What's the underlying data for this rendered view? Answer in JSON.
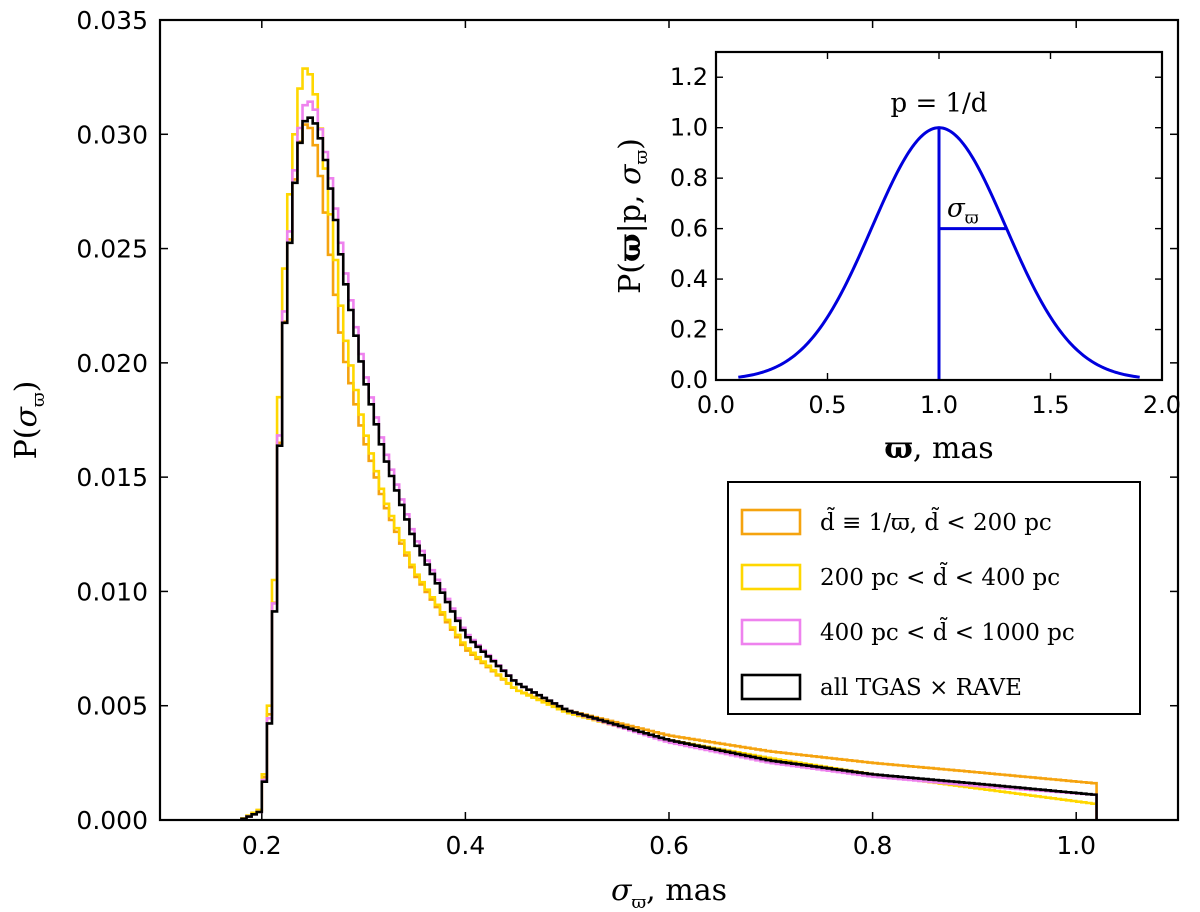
{
  "chart_data": [
    {
      "type": "line",
      "drawstyle": "steps",
      "title": "",
      "xlabel": "σϖ,  mas",
      "ylabel": "P(σϖ)",
      "xlim": [
        0.1,
        1.1
      ],
      "ylim": [
        0.0,
        0.035
      ],
      "x_ticks": [
        "0.2",
        "0.4",
        "0.6",
        "0.8",
        "1.0"
      ],
      "x_tick_values": [
        0.2,
        0.4,
        0.6,
        0.8,
        1.0
      ],
      "y_ticks": [
        "0.000",
        "0.005",
        "0.010",
        "0.015",
        "0.020",
        "0.025",
        "0.030",
        "0.035"
      ],
      "y_tick_values": [
        0.0,
        0.005,
        0.01,
        0.015,
        0.02,
        0.025,
        0.03,
        0.035
      ],
      "legend_placement": "center-right",
      "series": [
        {
          "name": "d̃ ≡ 1/ϖ,  d̃ < 200 pc",
          "color": "#f5a30f",
          "x": [
            0.18,
            0.2,
            0.21,
            0.22,
            0.23,
            0.24,
            0.25,
            0.26,
            0.27,
            0.28,
            0.3,
            0.32,
            0.35,
            0.4,
            0.45,
            0.5,
            0.6,
            0.7,
            0.8,
            0.9,
            1.02
          ],
          "y": [
            0.0,
            0.0005,
            0.006,
            0.02,
            0.0272,
            0.0305,
            0.0302,
            0.0275,
            0.0238,
            0.0205,
            0.0168,
            0.0139,
            0.0108,
            0.0075,
            0.0057,
            0.0048,
            0.0037,
            0.003,
            0.0025,
            0.0021,
            0.0016
          ]
        },
        {
          "name": "200 pc < d̃ < 400 pc",
          "color": "#ffd700",
          "x": [
            0.18,
            0.2,
            0.21,
            0.22,
            0.23,
            0.24,
            0.25,
            0.26,
            0.27,
            0.28,
            0.3,
            0.32,
            0.35,
            0.4,
            0.45,
            0.5,
            0.6,
            0.7,
            0.8,
            0.9,
            1.02
          ],
          "y": [
            0.0,
            0.0005,
            0.0065,
            0.0225,
            0.029,
            0.033,
            0.0325,
            0.0295,
            0.0255,
            0.0215,
            0.0172,
            0.0141,
            0.0109,
            0.0076,
            0.0057,
            0.0047,
            0.0035,
            0.0027,
            0.002,
            0.0014,
            0.0007
          ]
        },
        {
          "name": "400 pc < d̃ < 1000 pc",
          "color": "#ee82ee",
          "x": [
            0.18,
            0.2,
            0.21,
            0.22,
            0.23,
            0.24,
            0.25,
            0.26,
            0.27,
            0.28,
            0.3,
            0.32,
            0.35,
            0.4,
            0.45,
            0.5,
            0.6,
            0.7,
            0.8,
            0.9,
            1.02
          ],
          "y": [
            0.0,
            0.0004,
            0.0058,
            0.0205,
            0.0275,
            0.0312,
            0.0315,
            0.0298,
            0.0275,
            0.0245,
            0.0198,
            0.0163,
            0.0124,
            0.0082,
            0.006,
            0.0048,
            0.0034,
            0.0025,
            0.0019,
            0.0015,
            0.0011
          ]
        },
        {
          "name": "all TGAS × RAVE",
          "color": "#000000",
          "x": [
            0.18,
            0.2,
            0.21,
            0.22,
            0.23,
            0.24,
            0.25,
            0.26,
            0.27,
            0.28,
            0.3,
            0.32,
            0.35,
            0.4,
            0.45,
            0.5,
            0.6,
            0.7,
            0.8,
            0.9,
            1.02
          ],
          "y": [
            0.0,
            0.0004,
            0.0055,
            0.02,
            0.027,
            0.0305,
            0.0308,
            0.0295,
            0.027,
            0.024,
            0.0195,
            0.016,
            0.0122,
            0.0081,
            0.006,
            0.0048,
            0.0035,
            0.0026,
            0.002,
            0.0016,
            0.0011
          ]
        }
      ]
    },
    {
      "type": "line",
      "role": "inset",
      "title": "",
      "xlabel": "ϖ,  mas",
      "ylabel": "P(ϖ|p, σϖ)",
      "xlim": [
        0.0,
        2.0
      ],
      "ylim": [
        0.0,
        1.3
      ],
      "x_ticks": [
        "0.0",
        "0.5",
        "1.0",
        "1.5",
        "2.0"
      ],
      "x_tick_values": [
        0.0,
        0.5,
        1.0,
        1.5,
        2.0
      ],
      "y_ticks": [
        "0.0",
        "0.2",
        "0.4",
        "0.6",
        "0.8",
        "1.0",
        "1.2"
      ],
      "y_tick_values": [
        0.0,
        0.2,
        0.4,
        0.6,
        0.8,
        1.0,
        1.2
      ],
      "curve": {
        "name": "gaussian",
        "color": "#0000dd",
        "mean": 1.0,
        "sigma": 0.3,
        "x_min": 0.1,
        "x_max": 1.9
      },
      "annotations": {
        "peak_label": "p = 1/d",
        "sigma_label": "σϖ",
        "peak_x": 1.0,
        "sigma_level": 0.6,
        "sigma_half_width": 0.3
      }
    }
  ]
}
